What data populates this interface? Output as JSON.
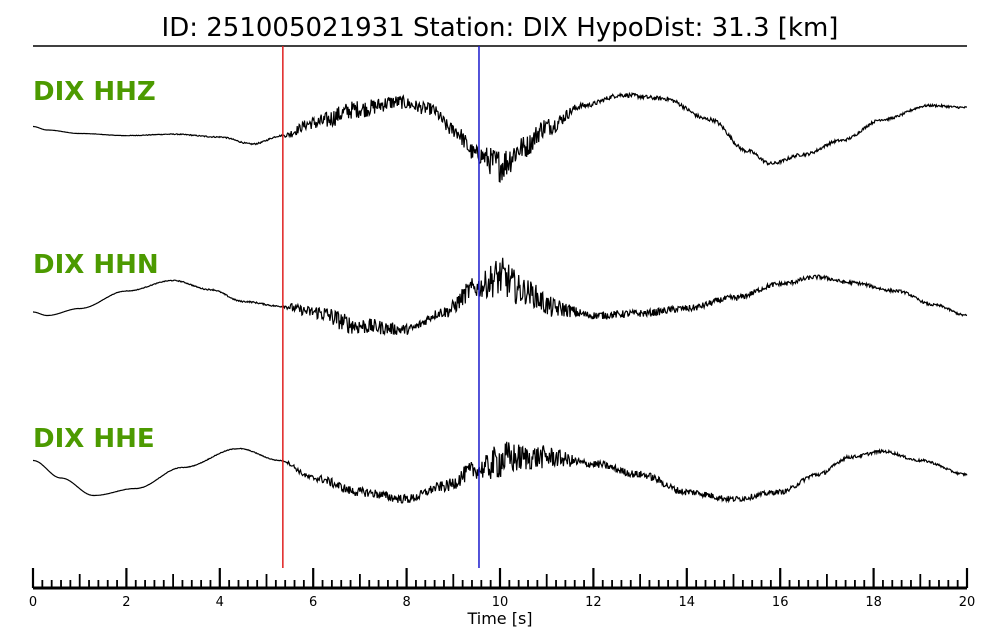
{
  "title": "ID: 251005021931   Station: DIX   HypoDist:    31.3 [km]",
  "colors": {
    "label": "#4c9a00",
    "trace": "#000000",
    "p_pick": "#e02020",
    "s_pick": "#1a1acc"
  },
  "chart_data": {
    "type": "line",
    "title": "ID: 251005021931   Station: DIX   HypoDist:    31.3 [km]",
    "xlabel": "Time [s]",
    "ylabel": "",
    "xlim": [
      0,
      20
    ],
    "x_ticks": [
      0,
      2,
      4,
      6,
      8,
      10,
      12,
      14,
      16,
      18,
      20
    ],
    "minor_tick_step": 0.2,
    "grid": false,
    "picks": [
      {
        "phase": "P",
        "time": 5.35,
        "color": "#e02020"
      },
      {
        "phase": "S",
        "time": 9.55,
        "color": "#1a1acc"
      }
    ],
    "series": [
      {
        "name": "DIX HHZ",
        "baseline": [
          [
            0,
            0.05
          ],
          [
            0.3,
            0.0
          ],
          [
            1,
            -0.05
          ],
          [
            2,
            -0.08
          ],
          [
            3,
            -0.06
          ],
          [
            4,
            -0.1
          ],
          [
            4.7,
            -0.2
          ],
          [
            5.35,
            -0.08
          ],
          [
            6,
            0.1
          ],
          [
            7,
            0.3
          ],
          [
            7.8,
            0.4
          ],
          [
            8.5,
            0.3
          ],
          [
            9,
            0.0
          ],
          [
            9.5,
            -0.35
          ],
          [
            10,
            -0.5
          ],
          [
            10.5,
            -0.25
          ],
          [
            11,
            0.05
          ],
          [
            11.8,
            0.35
          ],
          [
            12.6,
            0.5
          ],
          [
            13.5,
            0.45
          ],
          [
            14.5,
            0.15
          ],
          [
            15.3,
            -0.3
          ],
          [
            15.8,
            -0.48
          ],
          [
            16.5,
            -0.35
          ],
          [
            17.3,
            -0.15
          ],
          [
            18.2,
            0.15
          ],
          [
            19.2,
            0.35
          ],
          [
            20,
            0.32
          ]
        ],
        "noise": [
          [
            0,
            0
          ],
          [
            5.3,
            0.01
          ],
          [
            5.6,
            0.06
          ],
          [
            6.5,
            0.12
          ],
          [
            8.5,
            0.08
          ],
          [
            9.5,
            0.12
          ],
          [
            10,
            0.22
          ],
          [
            10.7,
            0.14
          ],
          [
            12,
            0.03
          ],
          [
            20,
            0.015
          ]
        ]
      },
      {
        "name": "DIX HHN",
        "baseline": [
          [
            0,
            -0.1
          ],
          [
            0.3,
            -0.15
          ],
          [
            1,
            -0.05
          ],
          [
            2,
            0.2
          ],
          [
            3,
            0.35
          ],
          [
            3.8,
            0.22
          ],
          [
            4.5,
            0.05
          ],
          [
            5.35,
            -0.02
          ],
          [
            6,
            -0.1
          ],
          [
            7,
            -0.3
          ],
          [
            8,
            -0.35
          ],
          [
            8.8,
            -0.1
          ],
          [
            9.5,
            0.25
          ],
          [
            10,
            0.4
          ],
          [
            10.5,
            0.2
          ],
          [
            11.2,
            -0.05
          ],
          [
            12,
            -0.15
          ],
          [
            13,
            -0.12
          ],
          [
            14,
            -0.05
          ],
          [
            15,
            0.1
          ],
          [
            16,
            0.3
          ],
          [
            16.8,
            0.4
          ],
          [
            17.5,
            0.32
          ],
          [
            18.5,
            0.2
          ],
          [
            19.3,
            0.0
          ],
          [
            20,
            -0.15
          ]
        ],
        "noise": [
          [
            0,
            0
          ],
          [
            5.3,
            0.01
          ],
          [
            5.6,
            0.06
          ],
          [
            6.5,
            0.12
          ],
          [
            8.5,
            0.06
          ],
          [
            9.5,
            0.14
          ],
          [
            10,
            0.26
          ],
          [
            10.7,
            0.16
          ],
          [
            12,
            0.05
          ],
          [
            20,
            0.015
          ]
        ]
      },
      {
        "name": "DIX HHE",
        "baseline": [
          [
            0,
            0.25
          ],
          [
            0.6,
            0.0
          ],
          [
            1.3,
            -0.25
          ],
          [
            2.2,
            -0.15
          ],
          [
            3.2,
            0.15
          ],
          [
            4.4,
            0.42
          ],
          [
            5.3,
            0.25
          ],
          [
            6,
            0.0
          ],
          [
            7,
            -0.2
          ],
          [
            8,
            -0.3
          ],
          [
            8.8,
            -0.12
          ],
          [
            9.5,
            0.12
          ],
          [
            10.2,
            0.28
          ],
          [
            11,
            0.3
          ],
          [
            12,
            0.2
          ],
          [
            13,
            0.05
          ],
          [
            14,
            -0.2
          ],
          [
            15,
            -0.3
          ],
          [
            16,
            -0.2
          ],
          [
            16.8,
            0.05
          ],
          [
            17.5,
            0.3
          ],
          [
            18.2,
            0.38
          ],
          [
            19,
            0.25
          ],
          [
            20,
            0.05
          ]
        ],
        "noise": [
          [
            0,
            0
          ],
          [
            5.3,
            0.005
          ],
          [
            5.6,
            0.03
          ],
          [
            6.5,
            0.06
          ],
          [
            8.5,
            0.06
          ],
          [
            9.5,
            0.12
          ],
          [
            10,
            0.24
          ],
          [
            10.7,
            0.16
          ],
          [
            12,
            0.05
          ],
          [
            20,
            0.015
          ]
        ]
      }
    ]
  }
}
